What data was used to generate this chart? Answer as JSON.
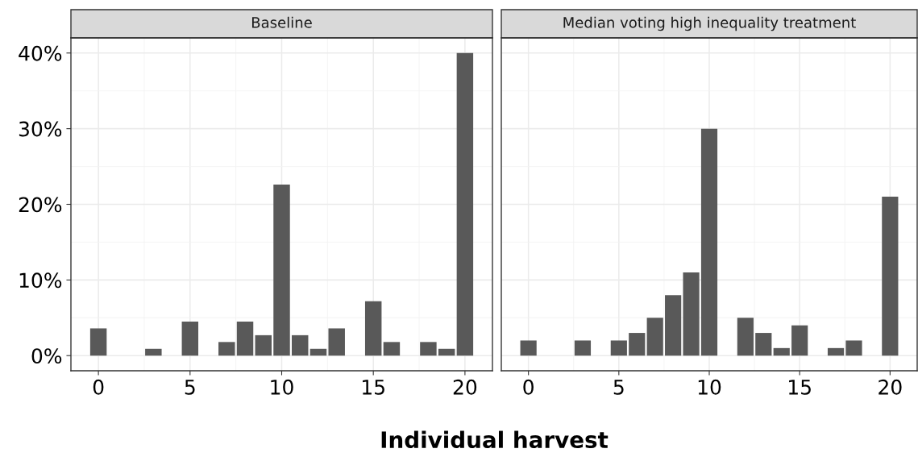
{
  "chart_data": [
    {
      "type": "bar",
      "title": "Baseline",
      "xlabel": "Individual harvest",
      "x": [
        0,
        3,
        5,
        7,
        8,
        9,
        10,
        11,
        12,
        13,
        15,
        16,
        18,
        19,
        20
      ],
      "values": [
        3.6,
        0.9,
        4.5,
        1.8,
        4.5,
        2.7,
        22.6,
        2.7,
        0.9,
        3.6,
        7.2,
        1.8,
        1.8,
        0.9,
        40.0
      ],
      "color": "#595959",
      "xlim": [
        -1.5,
        21.5
      ],
      "xticks": [
        0,
        5,
        10,
        15,
        20
      ],
      "ylim": [
        -2,
        42
      ],
      "yticks": [
        {
          "value": 0,
          "label": "0%"
        },
        {
          "value": 10,
          "label": "10%"
        },
        {
          "value": 20,
          "label": "20%"
        },
        {
          "value": 30,
          "label": "30%"
        },
        {
          "value": 40,
          "label": "40%"
        }
      ],
      "grid": true
    },
    {
      "type": "bar",
      "title": "Median voting high inequality treatment",
      "x": [
        0,
        3,
        5,
        6,
        7,
        8,
        9,
        10,
        12,
        13,
        14,
        15,
        17,
        18,
        20
      ],
      "values": [
        2,
        2,
        2,
        3,
        5,
        8,
        11,
        30,
        5,
        3,
        1,
        4,
        1,
        2,
        21
      ],
      "color": "#595959",
      "xlim": [
        -1.5,
        21.5
      ],
      "xticks": [
        0,
        5,
        10,
        15,
        20
      ],
      "ylim": [
        -2,
        42
      ],
      "yticks": [
        0,
        10,
        20,
        30,
        40
      ],
      "grid": true,
      "tick_labels": "x"
    }
  ]
}
